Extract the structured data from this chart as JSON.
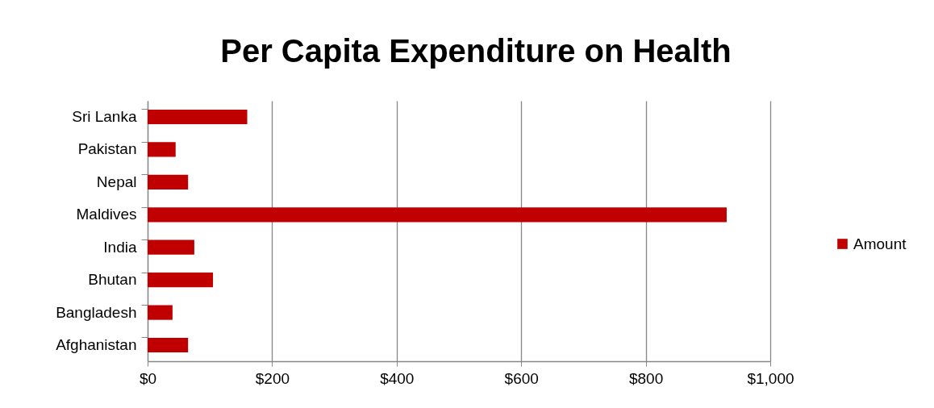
{
  "chart_data": {
    "type": "bar",
    "orientation": "horizontal",
    "title": "Per Capita Expenditure on Health",
    "categories": [
      "Sri Lanka",
      "Pakistan",
      "Nepal",
      "Maldives",
      "India",
      "Bhutan",
      "Bangladesh",
      "Afghanistan"
    ],
    "series": [
      {
        "name": "Amount",
        "color": "#c00000",
        "values": [
          160,
          45,
          65,
          930,
          75,
          105,
          40,
          65
        ]
      }
    ],
    "xlim": [
      0,
      1000
    ],
    "xticks": [
      {
        "value": 0,
        "label": "$0"
      },
      {
        "value": 200,
        "label": "$200"
      },
      {
        "value": 400,
        "label": "$400"
      },
      {
        "value": 600,
        "label": "$600"
      },
      {
        "value": 800,
        "label": "$800"
      },
      {
        "value": 1000,
        "label": "$1,000"
      }
    ],
    "grid": "x",
    "legend": "right"
  }
}
